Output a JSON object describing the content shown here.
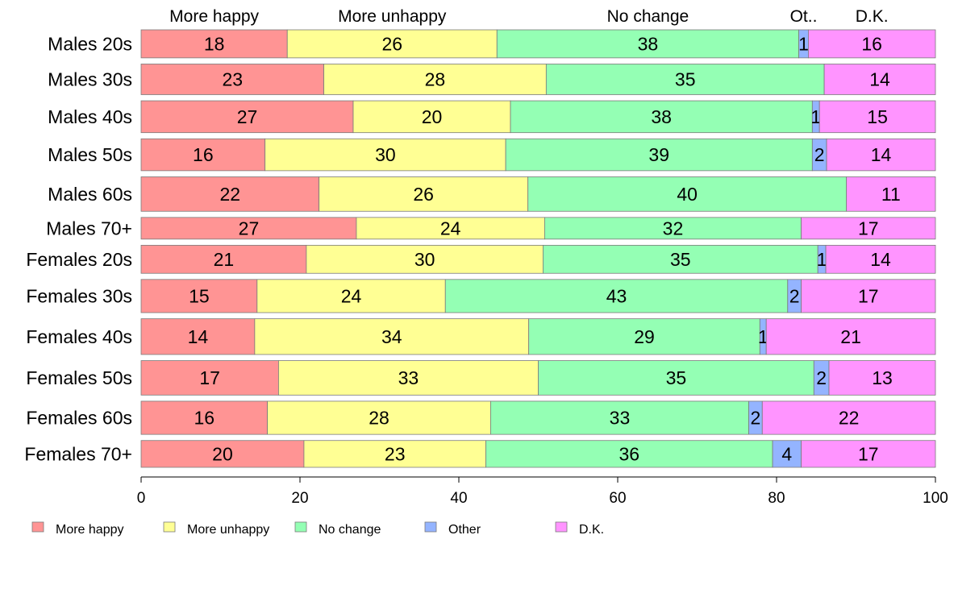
{
  "chart_data": {
    "type": "bar",
    "orientation": "horizontal",
    "stacked": true,
    "title": "",
    "xlabel": "",
    "ylabel": "",
    "xlim": [
      0,
      100
    ],
    "xticks": [
      0,
      20,
      40,
      60,
      80,
      100
    ],
    "grid": false,
    "legend_position": "bottom",
    "categories": [
      "Males 20s",
      "Males 30s",
      "Males 40s",
      "Males 50s",
      "Males 60s",
      "Males 70+",
      "Females 20s",
      "Females 30s",
      "Females 40s",
      "Females 50s",
      "Females 60s",
      "Females 70+"
    ],
    "top_labels": [
      "More happy",
      "More unhappy",
      "No change",
      "Ot..",
      "D.K."
    ],
    "series": [
      {
        "name": "More happy",
        "color": "#ff9494",
        "values": [
          18.4,
          23.0,
          26.7,
          15.6,
          22.4,
          27.1,
          20.8,
          14.6,
          14.3,
          17.3,
          15.9,
          20.5
        ]
      },
      {
        "name": "More unhappy",
        "color": "#ffff94",
        "values": [
          26.4,
          28.0,
          19.8,
          30.3,
          26.3,
          23.7,
          29.8,
          23.7,
          34.5,
          32.7,
          28.1,
          22.9
        ]
      },
      {
        "name": "No change",
        "color": "#94ffb4",
        "values": [
          38.0,
          35.0,
          38.0,
          38.6,
          40.1,
          32.3,
          34.6,
          43.1,
          29.1,
          34.7,
          32.5,
          36.1
        ]
      },
      {
        "name": "Other",
        "color": "#94b4ff",
        "values": [
          1.2,
          0,
          0.9,
          1.8,
          0,
          0,
          1.0,
          1.7,
          0.8,
          1.9,
          1.7,
          3.6
        ]
      },
      {
        "name": "D.K.",
        "color": "#ff94ff",
        "values": [
          16.0,
          14.0,
          14.6,
          13.7,
          11.2,
          16.9,
          13.8,
          16.9,
          21.3,
          13.4,
          21.8,
          16.9
        ]
      }
    ],
    "data_labels": [
      [
        "18",
        "26",
        "38",
        "1",
        "16"
      ],
      [
        "23",
        "28",
        "35",
        "",
        "14"
      ],
      [
        "27",
        "20",
        "38",
        "1",
        "15"
      ],
      [
        "16",
        "30",
        "39",
        "2",
        "14"
      ],
      [
        "22",
        "26",
        "40",
        "",
        "11"
      ],
      [
        "27",
        "24",
        "32",
        "",
        "17"
      ],
      [
        "21",
        "30",
        "35",
        "1",
        "14"
      ],
      [
        "15",
        "24",
        "43",
        "2",
        "17"
      ],
      [
        "14",
        "34",
        "29",
        "1",
        "21"
      ],
      [
        "17",
        "33",
        "35",
        "2",
        "13"
      ],
      [
        "16",
        "28",
        "33",
        "2",
        "22"
      ],
      [
        "20",
        "23",
        "36",
        "4",
        "17"
      ]
    ],
    "row_weights": [
      1.1,
      1.2,
      1.25,
      1.25,
      1.35,
      0.85,
      1.1,
      1.3,
      1.4,
      1.35,
      1.3,
      1.05
    ]
  }
}
